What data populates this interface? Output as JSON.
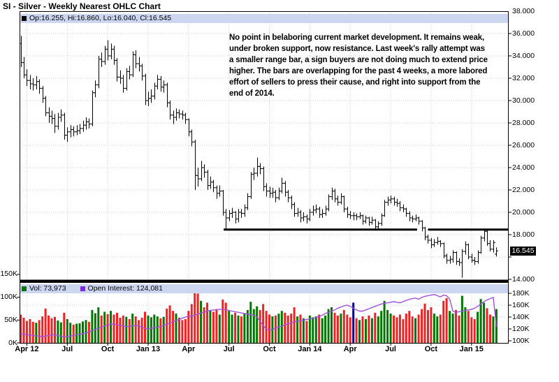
{
  "title": "SI - Silver - Weekly Nearest OHLC Chart",
  "ohlc_legend": {
    "marker_color": "#000000",
    "text": "Op:16.255, Hi:16.860, Lo:16.040, Cl:16.545"
  },
  "volume_legend": {
    "vol_marker_color": "#007700",
    "vol_text": "Vol: 73,973",
    "oi_marker_color": "#8822ee",
    "oi_text": "Open Interest: 124,081"
  },
  "annotation": {
    "lines": [
      "No point in belaboring current market development.  It remains weak,",
      "under broken support, now resistance.  Last week's rally attempt was",
      "a smaller range bar, a sign buyers are not doing much to extend price",
      "higher.  The bars are overlapping for the past 4 weeks, a more labored",
      "effort of sellers to press their cause, and right into support from the",
      "end of 2014."
    ]
  },
  "price_axis": {
    "tick_labels": [
      {
        "value": 38,
        "text": "38.000"
      },
      {
        "value": 36,
        "text": "36.000"
      },
      {
        "value": 34,
        "text": "34.000"
      },
      {
        "value": 32,
        "text": "32.000"
      },
      {
        "value": 30,
        "text": "30.000"
      },
      {
        "value": 28,
        "text": "28.000"
      },
      {
        "value": 26,
        "text": "26.000"
      },
      {
        "value": 24,
        "text": "24.000"
      },
      {
        "value": 22,
        "text": "22.000"
      },
      {
        "value": 20,
        "text": "20.000"
      },
      {
        "value": 18,
        "text": "18.000"
      },
      {
        "value": 14,
        "text": "14.000"
      }
    ],
    "current_price_label": "16.545"
  },
  "volume_axis_left": [
    {
      "value": 150,
      "text": "150K"
    },
    {
      "value": 100,
      "text": "100K"
    },
    {
      "value": 50,
      "text": "50K"
    },
    {
      "value": 0,
      "text": "0K"
    }
  ],
  "oi_axis_right": [
    {
      "value": 180,
      "text": "180K"
    },
    {
      "value": 160,
      "text": "160K"
    },
    {
      "value": 140,
      "text": "140K"
    },
    {
      "value": 120,
      "text": "120K"
    },
    {
      "value": 100,
      "text": "100K"
    }
  ],
  "colors": {
    "bar": "#000000",
    "up": "#007700",
    "down": "#ee2222",
    "flat": "#000080",
    "oi_line": "#a24fe0",
    "grid": "#c9cfda",
    "legend_bg": "#ccd6f0",
    "frame": "#000000",
    "badge_bg": "#000000",
    "badge_fg": "#ffffff"
  },
  "chart_data": {
    "type": "ohlc",
    "title": "SI - Silver - Weekly Nearest OHLC Chart",
    "timeframe": "weekly",
    "price_range": [
      14.0,
      38.0
    ],
    "volume_range_k": [
      0,
      150
    ],
    "oi_range_k": [
      100,
      180
    ],
    "x_ticks": [
      {
        "label": "Apr 12",
        "week": 2
      },
      {
        "label": "Jul",
        "week": 15
      },
      {
        "label": "Oct",
        "week": 28
      },
      {
        "label": "Jan 13",
        "week": 41
      },
      {
        "label": "Apr",
        "week": 54
      },
      {
        "label": "Jul",
        "week": 67
      },
      {
        "label": "Oct",
        "week": 80
      },
      {
        "label": "Jan 14",
        "week": 93
      },
      {
        "label": "Apr",
        "week": 106
      },
      {
        "label": "Jul",
        "week": 119
      },
      {
        "label": "Oct",
        "week": 132
      },
      {
        "label": "Jan 15",
        "week": 145
      }
    ],
    "resistance_line": {
      "price": 18.45,
      "segments": [
        {
          "from": 65.3,
          "to": 127.5
        },
        {
          "from": 131,
          "to": 157
        }
      ]
    },
    "last": {
      "open": 16.255,
      "high": 16.86,
      "low": 16.04,
      "close": 16.545,
      "volume": 73973,
      "open_interest": 124081
    },
    "bars": [
      [
        35.1,
        35.8,
        33.0,
        33.4
      ],
      [
        33.4,
        33.9,
        32.0,
        32.3
      ],
      [
        32.3,
        32.8,
        31.3,
        31.8
      ],
      [
        31.8,
        32.3,
        31.0,
        31.5
      ],
      [
        31.5,
        32.0,
        30.9,
        31.4
      ],
      [
        31.4,
        32.2,
        31.0,
        31.7
      ],
      [
        31.7,
        31.9,
        30.6,
        31.1
      ],
      [
        31.1,
        31.3,
        29.8,
        30.2
      ],
      [
        30.2,
        30.4,
        28.6,
        28.9
      ],
      [
        28.9,
        29.4,
        28.0,
        28.6
      ],
      [
        28.6,
        29.1,
        27.9,
        28.4
      ],
      [
        28.4,
        28.8,
        27.1,
        27.7
      ],
      [
        27.7,
        28.9,
        27.4,
        28.5
      ],
      [
        28.5,
        29.2,
        28.1,
        28.7
      ],
      [
        28.7,
        28.9,
        26.5,
        26.9
      ],
      [
        26.9,
        27.6,
        26.3,
        27.2
      ],
      [
        27.2,
        27.8,
        26.7,
        27.4
      ],
      [
        27.4,
        27.7,
        26.8,
        27.2
      ],
      [
        27.2,
        27.8,
        26.9,
        27.3
      ],
      [
        27.3,
        27.9,
        27.0,
        27.5
      ],
      [
        27.5,
        28.2,
        27.2,
        27.8
      ],
      [
        27.8,
        28.5,
        27.4,
        28.1
      ],
      [
        28.1,
        28.4,
        27.5,
        27.9
      ],
      [
        27.9,
        30.9,
        27.7,
        30.7
      ],
      [
        30.7,
        31.8,
        30.3,
        31.4
      ],
      [
        31.4,
        34.0,
        31.1,
        33.7
      ],
      [
        33.7,
        34.3,
        33.0,
        33.5
      ],
      [
        33.5,
        34.9,
        33.2,
        34.6
      ],
      [
        34.6,
        35.4,
        33.6,
        34.0
      ],
      [
        34.0,
        35.1,
        33.7,
        34.6
      ],
      [
        34.6,
        34.9,
        33.2,
        33.6
      ],
      [
        33.6,
        33.8,
        31.7,
        32.1
      ],
      [
        32.1,
        32.7,
        31.5,
        32.0
      ],
      [
        32.0,
        32.3,
        30.7,
        31.1
      ],
      [
        31.1,
        32.9,
        30.9,
        32.6
      ],
      [
        32.6,
        33.1,
        31.9,
        32.3
      ],
      [
        32.3,
        34.4,
        32.1,
        34.1
      ],
      [
        34.1,
        34.5,
        32.9,
        33.3
      ],
      [
        33.3,
        33.9,
        32.6,
        33.1
      ],
      [
        33.1,
        33.3,
        31.8,
        32.2
      ],
      [
        32.2,
        32.4,
        29.6,
        30.0
      ],
      [
        30.0,
        30.8,
        29.5,
        30.2
      ],
      [
        30.2,
        31.0,
        29.8,
        30.4
      ],
      [
        30.4,
        31.6,
        30.1,
        31.3
      ],
      [
        31.3,
        32.3,
        31.0,
        31.9
      ],
      [
        31.9,
        32.2,
        30.8,
        31.2
      ],
      [
        31.2,
        31.8,
        30.7,
        31.4
      ],
      [
        31.4,
        31.6,
        29.4,
        29.8
      ],
      [
        29.8,
        30.0,
        28.3,
        28.7
      ],
      [
        28.7,
        29.1,
        27.9,
        28.5
      ],
      [
        28.5,
        29.3,
        28.2,
        28.9
      ],
      [
        28.9,
        29.2,
        28.4,
        28.8
      ],
      [
        28.8,
        29.1,
        28.3,
        28.7
      ],
      [
        28.7,
        28.9,
        27.9,
        28.3
      ],
      [
        28.3,
        28.4,
        26.8,
        27.2
      ],
      [
        27.2,
        27.4,
        25.9,
        26.3
      ],
      [
        26.3,
        26.5,
        22.0,
        23.3
      ],
      [
        23.3,
        24.0,
        22.3,
        23.0
      ],
      [
        23.0,
        24.6,
        22.8,
        24.0
      ],
      [
        24.0,
        24.3,
        23.1,
        23.6
      ],
      [
        23.6,
        23.8,
        22.0,
        22.4
      ],
      [
        22.4,
        23.2,
        22.1,
        22.7
      ],
      [
        22.7,
        22.9,
        21.8,
        22.2
      ],
      [
        22.2,
        22.4,
        21.2,
        21.7
      ],
      [
        21.7,
        22.4,
        21.4,
        21.9
      ],
      [
        21.9,
        22.0,
        19.7,
        20.0
      ],
      [
        20.0,
        20.3,
        18.5,
        19.5
      ],
      [
        19.5,
        20.2,
        19.2,
        19.9
      ],
      [
        19.9,
        20.4,
        19.5,
        20.0
      ],
      [
        20.0,
        20.1,
        19.0,
        19.4
      ],
      [
        19.4,
        20.3,
        19.1,
        20.0
      ],
      [
        20.0,
        20.3,
        19.5,
        19.9
      ],
      [
        19.9,
        20.7,
        19.6,
        20.4
      ],
      [
        20.4,
        21.7,
        20.2,
        21.4
      ],
      [
        21.4,
        23.6,
        21.2,
        23.4
      ],
      [
        23.4,
        24.0,
        22.9,
        23.5
      ],
      [
        23.5,
        24.9,
        23.2,
        24.1
      ],
      [
        24.1,
        24.4,
        23.4,
        23.9
      ],
      [
        23.9,
        24.1,
        21.9,
        22.3
      ],
      [
        22.3,
        22.6,
        21.4,
        21.9
      ],
      [
        21.9,
        22.3,
        21.3,
        21.7
      ],
      [
        21.7,
        22.2,
        21.3,
        21.8
      ],
      [
        21.8,
        22.0,
        20.9,
        21.3
      ],
      [
        21.3,
        22.2,
        21.1,
        21.9
      ],
      [
        21.9,
        23.1,
        21.7,
        22.6
      ],
      [
        22.6,
        22.8,
        21.4,
        21.8
      ],
      [
        21.8,
        22.0,
        20.9,
        21.3
      ],
      [
        21.3,
        21.5,
        20.3,
        20.7
      ],
      [
        20.7,
        20.9,
        19.6,
        19.9
      ],
      [
        19.9,
        20.4,
        19.6,
        20.0
      ],
      [
        20.0,
        20.2,
        19.1,
        19.5
      ],
      [
        19.5,
        20.0,
        19.2,
        19.6
      ],
      [
        19.6,
        19.8,
        19.0,
        19.4
      ],
      [
        19.4,
        20.3,
        19.2,
        20.0
      ],
      [
        20.0,
        20.6,
        19.7,
        20.2
      ],
      [
        20.2,
        20.7,
        19.9,
        20.3
      ],
      [
        20.3,
        20.5,
        19.5,
        19.8
      ],
      [
        19.8,
        20.3,
        19.5,
        19.9
      ],
      [
        19.9,
        20.6,
        19.7,
        20.3
      ],
      [
        20.3,
        21.6,
        20.1,
        21.4
      ],
      [
        21.4,
        22.2,
        21.1,
        21.9
      ],
      [
        21.9,
        22.1,
        20.9,
        21.2
      ],
      [
        21.2,
        21.5,
        20.6,
        20.9
      ],
      [
        20.9,
        21.7,
        20.7,
        21.4
      ],
      [
        21.4,
        21.5,
        20.0,
        20.3
      ],
      [
        20.3,
        20.5,
        19.5,
        19.8
      ],
      [
        19.8,
        20.1,
        19.4,
        19.7
      ],
      [
        19.7,
        20.0,
        19.3,
        19.7
      ],
      [
        19.7,
        19.9,
        19.3,
        19.6
      ],
      [
        19.6,
        20.0,
        19.4,
        19.7
      ],
      [
        19.7,
        19.8,
        18.9,
        19.2
      ],
      [
        19.2,
        19.7,
        19.0,
        19.5
      ],
      [
        19.5,
        19.6,
        18.8,
        19.1
      ],
      [
        19.1,
        19.6,
        18.9,
        19.3
      ],
      [
        19.3,
        19.4,
        18.4,
        18.7
      ],
      [
        18.7,
        19.2,
        18.5,
        19.0
      ],
      [
        19.0,
        19.9,
        18.8,
        19.7
      ],
      [
        19.7,
        21.1,
        19.6,
        20.9
      ],
      [
        20.9,
        21.4,
        20.6,
        21.1
      ],
      [
        21.1,
        21.5,
        20.8,
        21.2
      ],
      [
        21.2,
        21.4,
        20.6,
        20.9
      ],
      [
        20.9,
        21.2,
        20.5,
        20.8
      ],
      [
        20.8,
        21.0,
        20.1,
        20.4
      ],
      [
        20.4,
        20.7,
        20.0,
        20.3
      ],
      [
        20.3,
        20.4,
        19.6,
        19.9
      ],
      [
        19.9,
        20.1,
        19.2,
        19.5
      ],
      [
        19.5,
        19.7,
        19.1,
        19.4
      ],
      [
        19.4,
        19.8,
        19.2,
        19.5
      ],
      [
        19.5,
        19.6,
        18.9,
        19.2
      ],
      [
        19.2,
        19.3,
        18.3,
        18.6
      ],
      [
        18.6,
        18.7,
        17.5,
        17.8
      ],
      [
        17.8,
        18.0,
        17.2,
        17.5
      ],
      [
        17.5,
        17.7,
        16.8,
        17.1
      ],
      [
        17.1,
        17.6,
        16.9,
        17.3
      ],
      [
        17.3,
        17.8,
        17.1,
        17.4
      ],
      [
        17.4,
        17.5,
        16.9,
        17.2
      ],
      [
        17.2,
        17.3,
        15.9,
        16.1
      ],
      [
        16.1,
        16.3,
        15.4,
        15.7
      ],
      [
        15.7,
        16.1,
        15.4,
        15.8
      ],
      [
        15.8,
        16.6,
        15.5,
        16.4
      ],
      [
        16.4,
        16.5,
        15.3,
        15.6
      ],
      [
        15.6,
        15.9,
        15.2,
        15.5
      ],
      [
        15.5,
        16.7,
        14.15,
        16.5
      ],
      [
        16.5,
        17.4,
        16.2,
        17.1
      ],
      [
        17.1,
        17.2,
        15.8,
        16.0
      ],
      [
        16.0,
        16.3,
        15.5,
        15.7
      ],
      [
        15.7,
        16.0,
        15.3,
        15.6
      ],
      [
        15.6,
        16.6,
        15.4,
        16.4
      ],
      [
        16.4,
        17.9,
        16.3,
        17.7
      ],
      [
        17.7,
        18.5,
        17.4,
        18.3
      ],
      [
        18.3,
        18.4,
        17.0,
        17.2
      ],
      [
        17.2,
        17.5,
        16.5,
        16.7
      ],
      [
        16.7,
        17.5,
        16.4,
        17.3
      ],
      [
        16.255,
        16.86,
        16.04,
        16.545
      ]
    ],
    "volume_k": [
      62,
      55,
      48,
      52,
      46,
      44,
      50,
      58,
      75,
      60,
      54,
      57,
      49,
      45,
      66,
      52,
      44,
      40,
      42,
      43,
      47,
      50,
      46,
      72,
      65,
      78,
      60,
      68,
      63,
      70,
      62,
      66,
      55,
      60,
      57,
      52,
      64,
      58,
      50,
      55,
      68,
      60,
      56,
      62,
      58,
      54,
      57,
      75,
      82,
      70,
      64,
      55,
      50,
      52,
      70,
      85,
      115,
      108,
      92,
      78,
      88,
      72,
      68,
      74,
      62,
      95,
      88,
      70,
      62,
      66,
      60,
      58,
      64,
      72,
      90,
      74,
      80,
      72,
      85,
      70,
      62,
      58,
      60,
      64,
      70,
      66,
      60,
      64,
      78,
      58,
      62,
      54,
      48,
      60,
      56,
      58,
      62,
      54,
      60,
      74,
      78,
      66,
      60,
      64,
      72,
      62,
      56,
      88,
      54,
      50,
      58,
      52,
      60,
      54,
      66,
      58,
      70,
      92,
      72,
      64,
      60,
      56,
      62,
      52,
      64,
      70,
      58,
      54,
      62,
      74,
      86,
      72,
      78,
      64,
      58,
      62,
      92,
      98,
      70,
      64,
      72,
      60,
      103,
      78,
      70,
      56,
      52,
      68,
      96,
      88,
      76,
      62,
      58,
      73.973
    ],
    "open_interest_k": [
      112,
      111,
      110,
      110,
      109,
      108,
      108,
      107,
      108,
      109,
      110,
      110,
      109,
      108,
      107,
      107,
      108,
      109,
      110,
      111,
      112,
      113,
      115,
      117,
      119,
      121,
      123,
      125,
      127,
      128,
      128,
      127,
      126,
      125,
      124,
      124,
      125,
      126,
      125,
      123,
      121,
      120,
      121,
      122,
      123,
      124,
      126,
      128,
      130,
      132,
      134,
      136,
      138,
      140,
      141,
      142,
      143,
      145,
      147,
      148,
      150,
      151,
      152,
      152,
      153,
      153,
      152,
      151,
      150,
      149,
      148,
      147,
      146,
      145,
      144,
      143,
      140,
      133,
      126,
      120,
      118,
      119,
      121,
      123,
      125,
      127,
      128,
      130,
      132,
      133,
      134,
      135,
      136,
      137,
      138,
      139,
      141,
      143,
      146,
      148,
      150,
      152,
      155,
      157,
      159,
      160,
      158,
      155,
      152,
      150,
      150,
      152,
      154,
      156,
      158,
      160,
      162,
      163,
      164,
      165,
      166,
      165,
      164,
      166,
      168,
      170,
      171,
      172,
      170,
      173,
      175,
      176,
      177,
      178,
      176,
      174,
      177,
      176,
      170,
      150,
      148,
      149,
      150,
      151,
      152,
      153,
      155,
      158,
      162,
      166,
      169,
      171,
      173,
      124.081
    ]
  }
}
